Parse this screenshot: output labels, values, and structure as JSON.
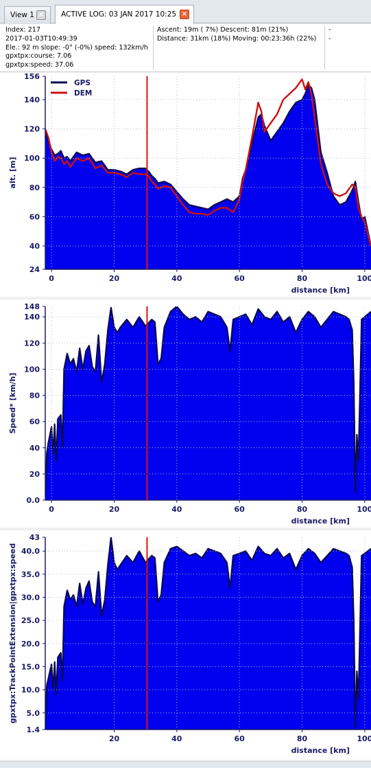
{
  "tabs": [
    {
      "label": "View 1",
      "close": "×"
    },
    {
      "label": "ACTIVE LOG: 03 JAN 2017 10:25",
      "close": "×"
    }
  ],
  "info": {
    "col1": [
      "Index: 217",
      "2017-01-03T10:49:39",
      "Ele.: 92 m slope: -0° (-0%) speed: 132km/h",
      "gpxtpx:course: 7.06",
      "gpxtpx:speed: 37.06"
    ],
    "col2": [
      "Ascent: 19m ( 7%)  Descent: 81m (21%)",
      "Distance: 31km (18%)  Moving: 00:23:36h (22%)"
    ],
    "col3": [
      "-",
      "-"
    ]
  },
  "colors": {
    "fill": "#0000ee",
    "outline": "#0a0a50",
    "dem": "#cc1010",
    "cursor": "#e01010",
    "axis": "#1a1a66"
  },
  "chart_data": [
    {
      "type": "area",
      "ylabel": "alt. [m]",
      "xlabel": "distance [km]",
      "xlim": [
        -2,
        102
      ],
      "ylim": [
        24,
        156
      ],
      "yticks": [
        "156",
        "140",
        "120",
        "100",
        "80",
        "60",
        "40",
        "24"
      ],
      "ytick_values": [
        156,
        140,
        120,
        100,
        80,
        60,
        40,
        24
      ],
      "xticks": [
        "0",
        "20",
        "40",
        "60",
        "80",
        "100"
      ],
      "xtick_values": [
        0,
        20,
        40,
        60,
        80,
        100
      ],
      "cursor_x": 30.5,
      "legend": [
        "GPS",
        "DEM"
      ],
      "series": [
        {
          "name": "GPS",
          "x": [
            -2,
            -1,
            0,
            1,
            2,
            3,
            4,
            5,
            6,
            8,
            10,
            12,
            14,
            16,
            18,
            20,
            22,
            24,
            26,
            28,
            30,
            31,
            32,
            33,
            34,
            36,
            38,
            40,
            42,
            44,
            46,
            48,
            50,
            52,
            54,
            56,
            58,
            60,
            61,
            62,
            64,
            66,
            67,
            68,
            70,
            72,
            74,
            76,
            78,
            80,
            81,
            82,
            83,
            84,
            86,
            88,
            90,
            92,
            94,
            96,
            97,
            98,
            99,
            100,
            101,
            102
          ],
          "y": [
            118,
            112,
            106,
            102,
            103,
            105,
            100,
            101,
            98,
            104,
            102,
            103,
            97,
            98,
            92,
            92,
            91,
            89,
            92,
            93,
            93,
            91,
            88,
            86,
            83,
            84,
            82,
            77,
            72,
            68,
            67,
            66,
            65,
            68,
            70,
            72,
            70,
            74,
            86,
            92,
            110,
            128,
            130,
            122,
            112,
            118,
            124,
            132,
            138,
            140,
            144,
            150,
            148,
            140,
            104,
            90,
            74,
            68,
            70,
            78,
            84,
            70,
            58,
            60,
            50,
            40
          ]
        },
        {
          "name": "DEM",
          "x": [
            -2,
            -1,
            0,
            1,
            2,
            3,
            4,
            5,
            6,
            8,
            10,
            12,
            14,
            16,
            18,
            20,
            22,
            24,
            26,
            28,
            30,
            31,
            32,
            33,
            34,
            36,
            38,
            40,
            42,
            44,
            46,
            48,
            50,
            52,
            54,
            56,
            58,
            60,
            61,
            62,
            64,
            66,
            67,
            68,
            70,
            72,
            74,
            76,
            78,
            80,
            81,
            82,
            83,
            84,
            86,
            88,
            90,
            92,
            94,
            96,
            97,
            98,
            99,
            100,
            101,
            102
          ],
          "y": [
            120,
            114,
            104,
            98,
            101,
            100,
            96,
            98,
            94,
            100,
            98,
            100,
            93,
            95,
            90,
            90,
            89,
            87,
            90,
            89,
            89,
            88,
            84,
            82,
            79,
            81,
            80,
            74,
            68,
            63,
            62,
            62,
            61,
            64,
            66,
            66,
            63,
            72,
            84,
            92,
            114,
            138,
            132,
            118,
            124,
            130,
            140,
            144,
            148,
            154,
            147,
            152,
            144,
            128,
            96,
            82,
            76,
            74,
            76,
            82,
            80,
            66,
            60,
            56,
            48,
            40
          ]
        }
      ]
    },
    {
      "type": "area",
      "ylabel": "Speed* [km/h]",
      "xlabel": "distance [km]",
      "xlim": [
        -2,
        102
      ],
      "ylim": [
        0,
        148
      ],
      "yticks": [
        "148",
        "140",
        "120",
        "100",
        "80",
        "60",
        "40",
        "20",
        "0.0"
      ],
      "ytick_values": [
        148,
        140,
        120,
        100,
        80,
        60,
        40,
        20,
        0
      ],
      "xticks": [
        "0",
        "20",
        "40",
        "60",
        "80",
        "100"
      ],
      "xtick_values": [
        0,
        20,
        40,
        60,
        80,
        100
      ],
      "cursor_x": 30.5,
      "series": [
        {
          "name": "",
          "x": [
            -2,
            -1.5,
            -1,
            0,
            0.5,
            1,
            1.5,
            2,
            3,
            3.5,
            4,
            5,
            6,
            7,
            8,
            9,
            10,
            11,
            12,
            13,
            14,
            15,
            16,
            17,
            18,
            19,
            20,
            21,
            22,
            24,
            26,
            28,
            30,
            32,
            33,
            34,
            35,
            36,
            38,
            40,
            42,
            44,
            46,
            48,
            50,
            52,
            54,
            56,
            57,
            58,
            60,
            62,
            64,
            66,
            68,
            70,
            72,
            74,
            76,
            78,
            80,
            82,
            84,
            86,
            88,
            90,
            92,
            94,
            95,
            96,
            96.5,
            97,
            97.5,
            98,
            99,
            100,
            102
          ],
          "y": [
            5,
            36,
            44,
            56,
            35,
            58,
            30,
            62,
            65,
            40,
            100,
            112,
            104,
            108,
            98,
            116,
            100,
            114,
            118,
            102,
            98,
            126,
            90,
            104,
            130,
            147,
            132,
            128,
            132,
            138,
            132,
            140,
            133,
            138,
            136,
            104,
            108,
            132,
            144,
            148,
            142,
            138,
            140,
            136,
            144,
            142,
            140,
            132,
            114,
            138,
            140,
            142,
            134,
            146,
            140,
            138,
            144,
            136,
            140,
            128,
            138,
            144,
            140,
            132,
            138,
            144,
            142,
            140,
            138,
            130,
            90,
            6,
            50,
            30,
            138,
            140,
            144
          ]
        }
      ]
    },
    {
      "type": "area",
      "ylabel": "gpxtpx:TrackPointExtension|gpxtpx:speed",
      "xlabel": "distance [km]",
      "xlim": [
        -2,
        102
      ],
      "ylim": [
        1.4,
        43
      ],
      "yticks": [
        "43",
        "40.0",
        "35.0",
        "30.0",
        "25.0",
        "20.0",
        "15.0",
        "10.0",
        "5.0",
        "1.4"
      ],
      "ytick_values": [
        43,
        40,
        35,
        30,
        25,
        20,
        15,
        10,
        5,
        1.4
      ],
      "xticks": [
        "20",
        "40",
        "60",
        "80",
        "100"
      ],
      "xtick_values": [
        20,
        40,
        60,
        80,
        100
      ],
      "cursor_x": 30.5,
      "series": [
        {
          "name": "",
          "x": [
            -2,
            -1.5,
            -1,
            0,
            0.5,
            1,
            1.5,
            2,
            3,
            3.5,
            4,
            5,
            6,
            7,
            8,
            9,
            10,
            11,
            12,
            13,
            14,
            15,
            16,
            17,
            18,
            19,
            20,
            21,
            22,
            24,
            26,
            28,
            30,
            32,
            33,
            34,
            35,
            36,
            38,
            40,
            42,
            44,
            46,
            48,
            50,
            52,
            54,
            56,
            57,
            58,
            60,
            62,
            64,
            66,
            68,
            70,
            72,
            74,
            76,
            78,
            80,
            82,
            84,
            86,
            88,
            90,
            92,
            94,
            95,
            96,
            96.5,
            97,
            97.5,
            98,
            99,
            100,
            102
          ],
          "y": [
            2.5,
            11,
            12.5,
            15.5,
            10,
            16,
            9,
            17,
            18,
            12,
            28,
            31.5,
            29.5,
            30.5,
            28,
            33,
            28.5,
            32,
            33.5,
            29,
            28,
            35.5,
            26,
            29.5,
            37,
            43,
            37.5,
            36,
            37,
            39,
            37.5,
            40,
            37.5,
            39,
            38.5,
            29,
            30.5,
            37.5,
            40.5,
            41,
            40,
            39,
            39.5,
            38.5,
            40.5,
            40,
            39.5,
            37.5,
            32,
            39,
            39.5,
            40,
            38,
            41,
            39.5,
            39,
            40.5,
            38.5,
            39.5,
            36,
            39,
            40.5,
            39.5,
            37.5,
            39,
            40.5,
            40,
            39.5,
            39,
            36.5,
            25,
            2,
            14,
            8,
            39,
            39.5,
            40.5
          ]
        }
      ]
    }
  ]
}
